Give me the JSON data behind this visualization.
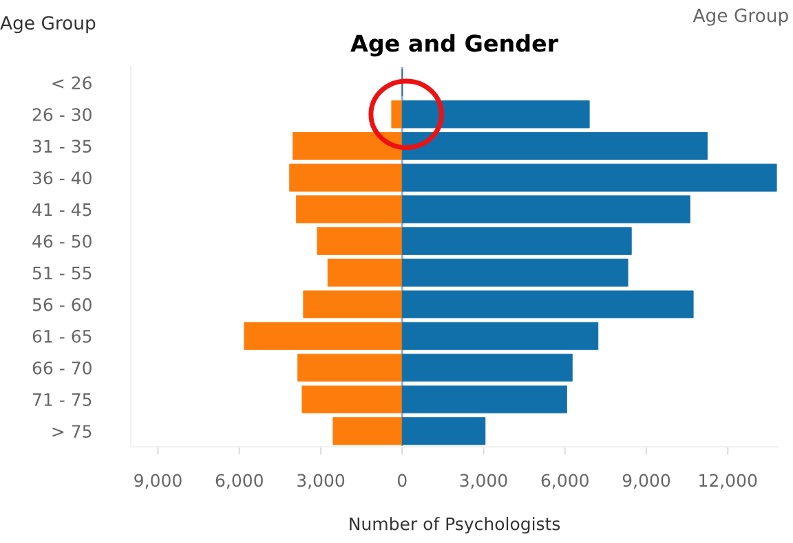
{
  "chart_data": {
    "type": "bar",
    "orientation": "horizontal",
    "stacked": true,
    "title": "Age and Gender",
    "xlabel": "Number of Psychologists",
    "ylabel": "Age Group",
    "annotations": [
      "Age Group"
    ],
    "categories": [
      "< 26",
      "26 - 30",
      "31 - 35",
      "36 - 40",
      "41 - 45",
      "46 - 50",
      "51 - 55",
      "56 - 60",
      "61 - 65",
      "66 - 70",
      "71 - 75",
      "> 75"
    ],
    "series": [
      {
        "color": "#fc7d0b",
        "values": [
          0,
          -390,
          -4030,
          -4150,
          -3900,
          -3130,
          -2740,
          -3640,
          -5820,
          -3850,
          -3690,
          -2550
        ]
      },
      {
        "color": "#1170aa",
        "values": [
          0,
          6900,
          11250,
          13800,
          10610,
          8450,
          8320,
          10730,
          7220,
          6270,
          6070,
          3060
        ]
      }
    ],
    "xlim": [
      -10000,
      13850
    ],
    "xticks": [
      {
        "value": -9000,
        "label": "9,000"
      },
      {
        "value": -6000,
        "label": "6,000"
      },
      {
        "value": -3000,
        "label": "3,000"
      },
      0,
      {
        "value": 3000,
        "label": "3,000"
      },
      {
        "value": 6000,
        "label": "6,000"
      },
      {
        "value": 9000,
        "label": "9,000"
      },
      {
        "value": 12000,
        "label": "12,000"
      }
    ],
    "ref_lines": [
      {
        "axis": "x",
        "value": 0,
        "color": "#8fb4d6"
      }
    ],
    "grid": false,
    "legend": false
  }
}
